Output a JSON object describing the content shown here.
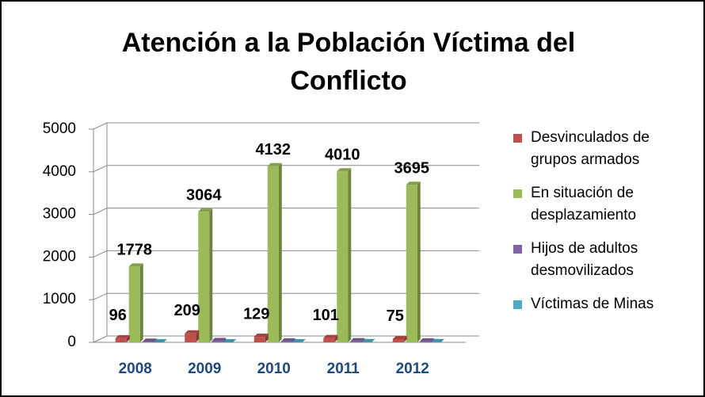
{
  "chart_data": {
    "type": "bar3d",
    "title": "Atención a la Población Víctima del Conflicto",
    "categories": [
      "2008",
      "2009",
      "2010",
      "2011",
      "2012"
    ],
    "series": [
      {
        "name": "Desvinculados de grupos armados",
        "color": "#c0504d",
        "values": [
          96,
          209,
          129,
          101,
          75
        ],
        "labels": true
      },
      {
        "name": "En situación de desplazamiento",
        "color": "#9bbb59",
        "values": [
          1778,
          3064,
          4132,
          4010,
          3695
        ],
        "labels": true
      },
      {
        "name": "Hijos de adultos desmovilizados",
        "color": "#8064a2",
        "values": [
          15,
          30,
          20,
          25,
          20
        ],
        "labels": false
      },
      {
        "name": "Víctimas de Minas",
        "color": "#4bacc6",
        "values": [
          0,
          0,
          0,
          5,
          5
        ],
        "labels": false
      }
    ],
    "ylim": [
      0,
      5000
    ],
    "yticks": [
      0,
      1000,
      2000,
      3000,
      4000,
      5000
    ],
    "grid": true,
    "legend": "right"
  }
}
